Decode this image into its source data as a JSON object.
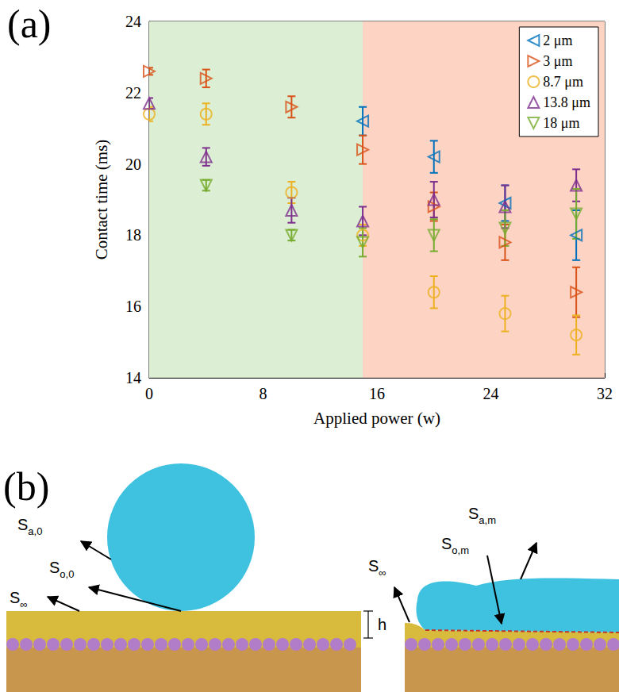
{
  "chart_data": {
    "type": "scatter",
    "title": "(a)",
    "x_label": "Applied power (w)",
    "y_label": "Contact time (ms)",
    "xlim": [
      0,
      32
    ],
    "xticks": [
      0,
      8,
      16,
      24,
      32
    ],
    "ylim": [
      14,
      24
    ],
    "yticks": [
      14,
      16,
      18,
      20,
      22,
      24
    ],
    "grid": false,
    "legend": "top-right",
    "regions": [
      {
        "from": 0,
        "to": 15,
        "color": "#dceed3"
      },
      {
        "from": 15,
        "to": 32,
        "color": "#fdd3c3"
      }
    ],
    "series": [
      {
        "name": "2 μm",
        "color": "#0072BD",
        "marker": "triangle-left",
        "x": [
          15,
          20,
          25,
          30
        ],
        "values": [
          21.2,
          20.2,
          18.9,
          18.0
        ],
        "errors": [
          0.4,
          0.45,
          0.5,
          0.7
        ]
      },
      {
        "name": "3 μm",
        "color": "#D95319",
        "marker": "triangle-right",
        "x": [
          0,
          4,
          10,
          15,
          20,
          25,
          30
        ],
        "values": [
          22.6,
          22.4,
          21.6,
          20.4,
          18.8,
          17.8,
          16.4
        ],
        "errors": [
          0.1,
          0.25,
          0.3,
          0.4,
          0.4,
          0.5,
          0.7
        ]
      },
      {
        "name": "8.7 μm",
        "color": "#EDB120",
        "marker": "circle",
        "x": [
          0,
          4,
          10,
          15,
          20,
          25,
          30
        ],
        "values": [
          21.4,
          21.4,
          19.2,
          18.0,
          16.4,
          15.8,
          15.2
        ],
        "errors": [
          0.2,
          0.3,
          0.3,
          0.3,
          0.45,
          0.5,
          0.55
        ]
      },
      {
        "name": "13.8 μm",
        "color": "#7E2F8E",
        "marker": "triangle-up",
        "x": [
          0,
          4,
          10,
          15,
          20,
          25,
          30
        ],
        "values": [
          21.7,
          20.2,
          18.7,
          18.4,
          19.0,
          18.8,
          19.4
        ],
        "errors": [
          0.15,
          0.25,
          0.35,
          0.4,
          0.5,
          0.6,
          0.45
        ]
      },
      {
        "name": "18 μm",
        "color": "#77AC30",
        "marker": "triangle-down",
        "x": [
          4,
          10,
          15,
          20,
          25,
          30
        ],
        "values": [
          19.4,
          18.0,
          17.8,
          18.0,
          18.2,
          18.6
        ],
        "errors": [
          0.15,
          0.15,
          0.4,
          0.45,
          0.5,
          0.7
        ]
      }
    ]
  },
  "diagram": {
    "label": "(b)",
    "left": {
      "labels": [
        {
          "text": "S",
          "sub": "a,0"
        },
        {
          "text": "S",
          "sub": "o,0"
        },
        {
          "text": "S",
          "sub": "∞"
        }
      ],
      "thickness": "h"
    },
    "right": {
      "labels": [
        {
          "text": "S",
          "sub": "∞"
        },
        {
          "text": "S",
          "sub": "a,m"
        },
        {
          "text": "S",
          "sub": "o,m"
        }
      ]
    }
  }
}
